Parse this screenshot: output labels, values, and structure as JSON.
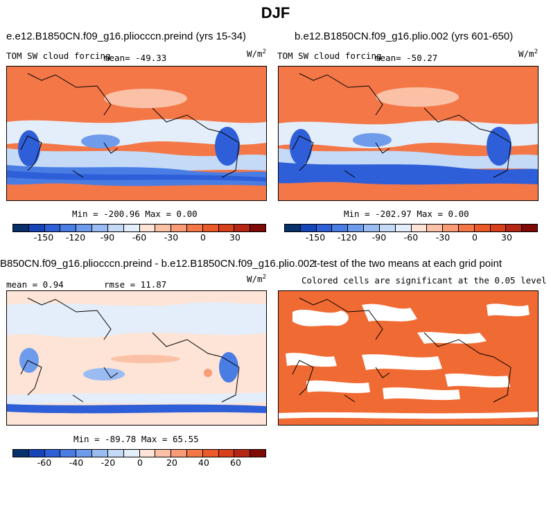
{
  "figure": {
    "title": "DJF"
  },
  "colors": {
    "abs_scale": [
      "#08306b",
      "#1645b8",
      "#2f5fd8",
      "#4a7de4",
      "#6f9bec",
      "#9bbcf2",
      "#c4daf7",
      "#e4eefb",
      "#fde4d6",
      "#fbc1a6",
      "#f89b76",
      "#f47748",
      "#ed5a2a",
      "#d8401c",
      "#b52714",
      "#7f0a05"
    ],
    "diff_scale": [
      "#08306b",
      "#1645b8",
      "#2f5fd8",
      "#4a7de4",
      "#6f9bec",
      "#9bbcf2",
      "#c4daf7",
      "#e4eefb",
      "#fde4d6",
      "#fbc1a6",
      "#f89b76",
      "#f47748",
      "#ed5a2a",
      "#d8401c",
      "#b52714",
      "#7f0a05"
    ],
    "significance": "#f06a33"
  },
  "chart_data": [
    {
      "type": "heatmap",
      "title": "e.e12.B1850CN.f09_g16.pliocccn.preind (yrs 15-34)",
      "variable": "TOM SW cloud forcing",
      "units_base": "W/m",
      "units_exp": "2",
      "mean_label": "mean= -49.33",
      "minmax_label": "Min = -200.96 Max =    0.00",
      "min": -200.96,
      "max": 0.0,
      "mean": -49.33,
      "colorbar_ticks": [
        "-150",
        "-120",
        "-90",
        "-60",
        "-30",
        "0",
        "30"
      ]
    },
    {
      "type": "heatmap",
      "title": "b.e12.B1850CN.f09_g16.plio.002 (yrs 601-650)",
      "variable": "TOM SW cloud forcing",
      "units_base": "W/m",
      "units_exp": "2",
      "mean_label": "mean= -50.27",
      "minmax_label": "Min = -202.97 Max =    0.00",
      "min": -202.97,
      "max": 0.0,
      "mean": -50.27,
      "colorbar_ticks": [
        "-150",
        "-120",
        "-90",
        "-60",
        "-30",
        "0",
        "30"
      ]
    },
    {
      "type": "heatmap",
      "title": "B850CN.f09_g16.pliocccn.preind - b.e12.B1850CN.f09_g16.plio.002",
      "mean_label": "mean =    0.94",
      "rmse_label": "rmse =  11.87",
      "units_base": "W/m",
      "units_exp": "2",
      "minmax_label": "Min = -89.78 Max =  65.55",
      "min": -89.78,
      "max": 65.55,
      "mean": 0.94,
      "rmse": 11.87,
      "colorbar_ticks": [
        "-60",
        "-40",
        "-20",
        "0",
        "20",
        "40",
        "60"
      ]
    },
    {
      "type": "heatmap",
      "title": "t-test of the two means at each grid point",
      "subtitle": "Colored cells are significant at the 0.05 level"
    }
  ]
}
